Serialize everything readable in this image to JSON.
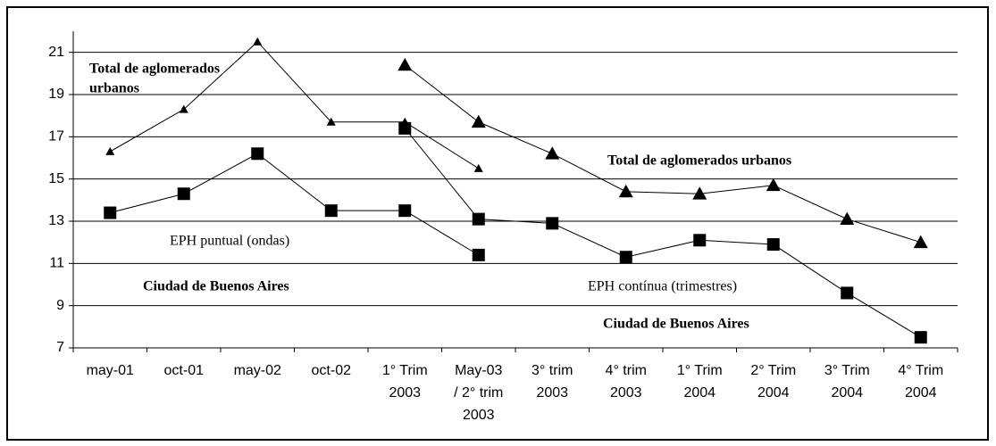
{
  "chart_data": {
    "type": "line",
    "categories": [
      [
        "may-01"
      ],
      [
        "oct-01"
      ],
      [
        "may-02"
      ],
      [
        "oct-02"
      ],
      [
        "1° Trim",
        "2003"
      ],
      [
        "May-03",
        "/ 2° trim",
        "2003"
      ],
      [
        "3° trim",
        "2003"
      ],
      [
        "4° trim",
        "2003"
      ],
      [
        "1° Trim",
        "2004"
      ],
      [
        "2° Trim",
        "2004"
      ],
      [
        "3° Trim",
        "2004"
      ],
      [
        "4° Trim",
        "2004"
      ]
    ],
    "series": [
      {
        "color": "#000000",
        "marker": "triangle",
        "marker_size": 5,
        "values": [
          16.3,
          18.3,
          21.5,
          17.7,
          17.7,
          15.5,
          null,
          null,
          null,
          null,
          null,
          null
        ]
      },
      {
        "color": "#000000",
        "marker": "triangle",
        "marker_size": 8,
        "values": [
          null,
          null,
          null,
          null,
          20.4,
          17.7,
          16.2,
          14.4,
          14.3,
          14.7,
          13.1,
          12.0
        ]
      },
      {
        "color": "#000000",
        "marker": "square",
        "marker_size": 7,
        "values": [
          13.4,
          14.3,
          16.2,
          13.5,
          13.5,
          11.4,
          null,
          null,
          null,
          null,
          null,
          null
        ]
      },
      {
        "color": "#000000",
        "marker": "square",
        "marker_size": 7,
        "values": [
          null,
          null,
          null,
          null,
          17.4,
          13.1,
          12.9,
          11.3,
          12.1,
          11.9,
          9.6,
          7.5
        ]
      }
    ],
    "annotations": [
      [
        "Total de aglomerados",
        "urbanos"
      ],
      [
        "Total de aglomerados urbanos"
      ],
      [
        "EPH puntual (ondas)"
      ],
      [
        "Ciudad de Buenos Aires"
      ],
      [
        "EPH contínua (trimestres)"
      ],
      [
        "Ciudad de Buenos Aires"
      ]
    ],
    "ylim": [
      7,
      22
    ],
    "yticks": [
      7,
      9,
      11,
      13,
      15,
      17,
      19,
      21
    ],
    "grid": true
  }
}
